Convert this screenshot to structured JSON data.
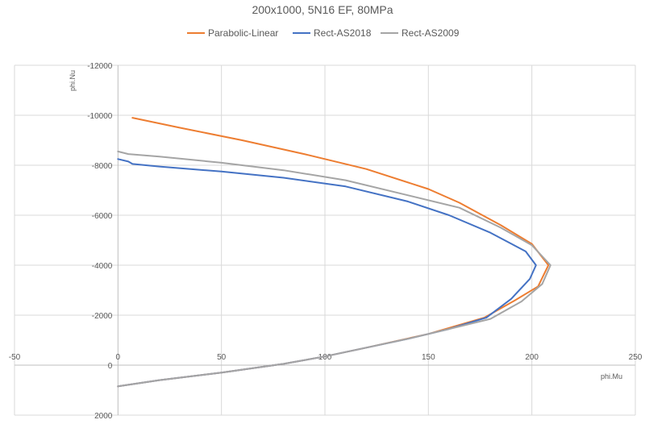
{
  "chart_data": {
    "type": "line",
    "title": "200x1000, 5N16 EF, 80MPa",
    "xlabel": "phi.Mu",
    "ylabel": "phi.Nu",
    "xlim": [
      -50,
      250
    ],
    "ylim": [
      -12000,
      2000
    ],
    "y_reversed": true,
    "x_ticks": [
      -50,
      0,
      50,
      100,
      150,
      200,
      250
    ],
    "y_ticks": [
      -12000,
      -10000,
      -8000,
      -6000,
      -4000,
      -2000,
      0,
      2000
    ],
    "grid": true,
    "legend_position": "top",
    "series": [
      {
        "name": "Parabolic-Linear",
        "color": "#ED7D31",
        "points": [
          [
            7,
            -9900
          ],
          [
            30,
            -9500
          ],
          [
            60,
            -9000
          ],
          [
            90,
            -8450
          ],
          [
            120,
            -7850
          ],
          [
            150,
            -7050
          ],
          [
            165,
            -6500
          ],
          [
            185,
            -5600
          ],
          [
            200,
            -4850
          ],
          [
            208,
            -4000
          ],
          [
            203,
            -3150
          ],
          [
            192,
            -2600
          ],
          [
            177,
            -1900
          ],
          [
            150,
            -1250
          ],
          [
            120,
            -700
          ],
          [
            100,
            -350
          ],
          [
            80,
            -50
          ],
          [
            50,
            300
          ],
          [
            20,
            600
          ],
          [
            0,
            850
          ]
        ]
      },
      {
        "name": "Rect-AS2018",
        "color": "#4472C4",
        "points": [
          [
            0,
            -8250
          ],
          [
            5,
            -8150
          ],
          [
            7,
            -8050
          ],
          [
            20,
            -7950
          ],
          [
            50,
            -7750
          ],
          [
            80,
            -7500
          ],
          [
            110,
            -7150
          ],
          [
            140,
            -6550
          ],
          [
            160,
            -6000
          ],
          [
            180,
            -5300
          ],
          [
            197,
            -4550
          ],
          [
            202,
            -4000
          ],
          [
            199,
            -3450
          ],
          [
            190,
            -2650
          ],
          [
            178,
            -1900
          ],
          [
            160,
            -1450
          ],
          [
            140,
            -1050
          ],
          [
            120,
            -700
          ],
          [
            100,
            -350
          ],
          [
            80,
            -50
          ],
          [
            50,
            300
          ],
          [
            20,
            600
          ],
          [
            0,
            850
          ]
        ]
      },
      {
        "name": "Rect-AS2009",
        "color": "#A5A5A5",
        "points": [
          [
            0,
            -8550
          ],
          [
            5,
            -8450
          ],
          [
            20,
            -8350
          ],
          [
            50,
            -8100
          ],
          [
            80,
            -7800
          ],
          [
            110,
            -7400
          ],
          [
            140,
            -6800
          ],
          [
            165,
            -6300
          ],
          [
            185,
            -5500
          ],
          [
            200,
            -4800
          ],
          [
            209,
            -4000
          ],
          [
            205,
            -3250
          ],
          [
            195,
            -2550
          ],
          [
            180,
            -1850
          ],
          [
            160,
            -1450
          ],
          [
            140,
            -1050
          ],
          [
            120,
            -700
          ],
          [
            100,
            -350
          ],
          [
            80,
            -50
          ],
          [
            50,
            300
          ],
          [
            20,
            600
          ],
          [
            0,
            850
          ]
        ]
      }
    ]
  }
}
